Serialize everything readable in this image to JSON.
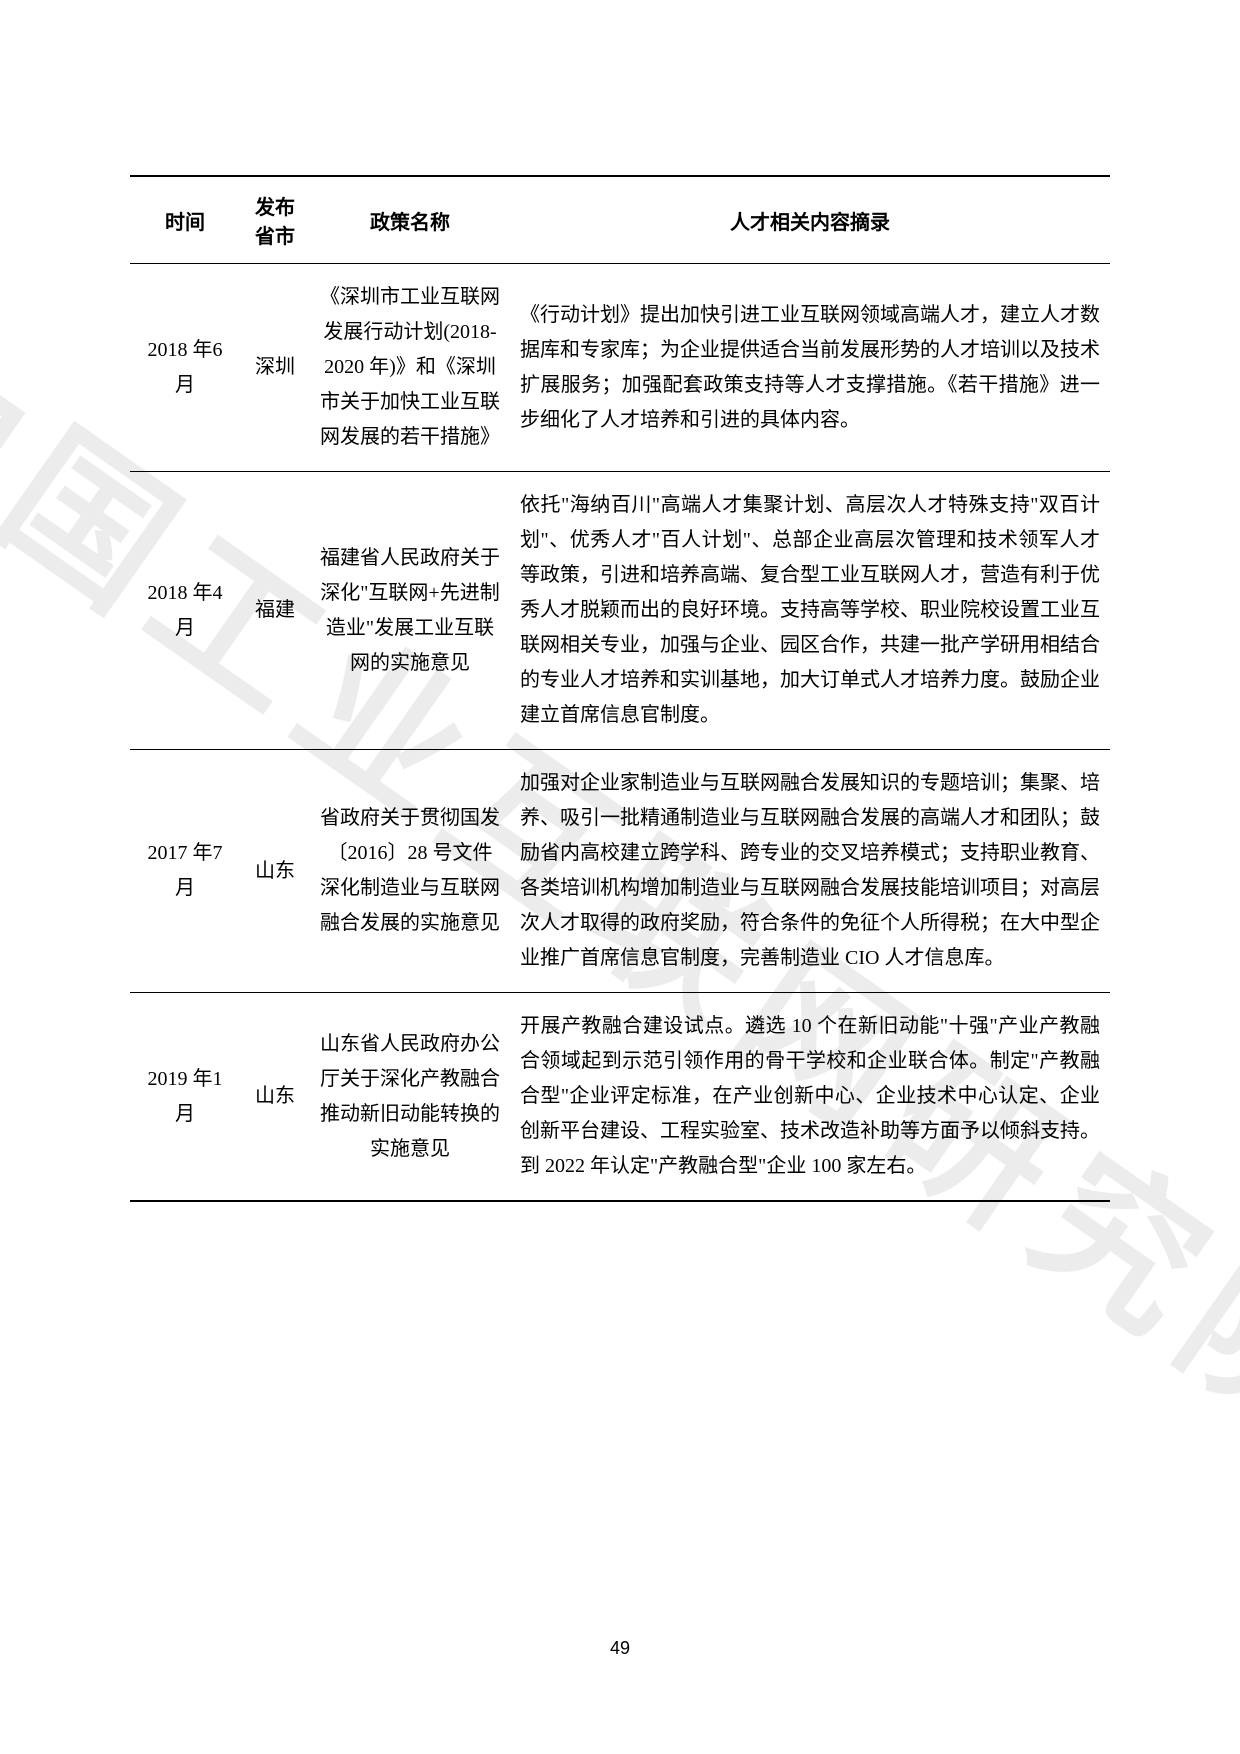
{
  "watermark": "中国工业互联网研究院",
  "page_number": "49",
  "table": {
    "headers": {
      "time": "时间",
      "province": "发布省市",
      "policy": "政策名称",
      "summary": "人才相关内容摘录"
    },
    "rows": [
      {
        "time": "2018 年6 月",
        "province": "深圳",
        "policy": "《深圳市工业互联网发展行动计划(2018-2020 年)》和《深圳市关于加快工业互联网发展的若干措施》",
        "summary": "《行动计划》提出加快引进工业互联网领域高端人才，建立人才数据库和专家库；为企业提供适合当前发展形势的人才培训以及技术扩展服务；加强配套政策支持等人才支撑措施。《若干措施》进一步细化了人才培养和引进的具体内容。"
      },
      {
        "time": "2018 年4 月",
        "province": "福建",
        "policy": "福建省人民政府关于深化\"互联网+先进制造业\"发展工业互联网的实施意见",
        "summary": "依托\"海纳百川\"高端人才集聚计划、高层次人才特殊支持\"双百计划\"、优秀人才\"百人计划\"、总部企业高层次管理和技术领军人才等政策，引进和培养高端、复合型工业互联网人才，营造有利于优秀人才脱颖而出的良好环境。支持高等学校、职业院校设置工业互联网相关专业，加强与企业、园区合作，共建一批产学研用相结合的专业人才培养和实训基地，加大订单式人才培养力度。鼓励企业建立首席信息官制度。"
      },
      {
        "time": "2017 年7 月",
        "province": "山东",
        "policy": "省政府关于贯彻国发〔2016〕28 号文件深化制造业与互联网融合发展的实施意见",
        "summary": "加强对企业家制造业与互联网融合发展知识的专题培训；集聚、培养、吸引一批精通制造业与互联网融合发展的高端人才和团队；鼓励省内高校建立跨学科、跨专业的交叉培养模式；支持职业教育、各类培训机构增加制造业与互联网融合发展技能培训项目；对高层次人才取得的政府奖励，符合条件的免征个人所得税；在大中型企业推广首席信息官制度，完善制造业 CIO 人才信息库。"
      },
      {
        "time": "2019 年1 月",
        "province": "山东",
        "policy": "山东省人民政府办公厅关于深化产教融合推动新旧动能转换的实施意见",
        "summary": "开展产教融合建设试点。遴选 10 个在新旧动能\"十强\"产业产教融合领域起到示范引领作用的骨干学校和企业联合体。制定\"产教融合型\"企业评定标准，在产业创新中心、企业技术中心认定、企业创新平台建设、工程实验室、技术改造补助等方面予以倾斜支持。到 2022 年认定\"产教融合型\"企业 100 家左右。"
      }
    ]
  }
}
